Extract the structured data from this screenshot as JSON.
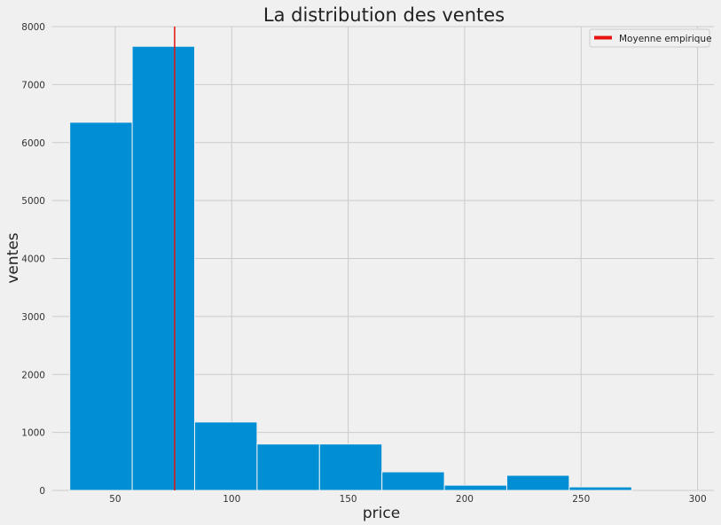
{
  "chart_data": {
    "type": "bar",
    "title": "La distribution des ventes",
    "xlabel": "price",
    "ylabel": "ventes",
    "xlim": [
      23,
      307
    ],
    "ylim": [
      0,
      8000
    ],
    "xticks": [
      50,
      100,
      150,
      200,
      250,
      300
    ],
    "yticks": [
      0,
      1000,
      2000,
      3000,
      4000,
      5000,
      6000,
      7000,
      8000
    ],
    "bin_edges": [
      30.5,
      57.3,
      84.1,
      110.9,
      137.7,
      164.5,
      191.3,
      218.1,
      244.9,
      271.7,
      298.5
    ],
    "values": [
      6350,
      7660,
      1180,
      800,
      800,
      320,
      90,
      260,
      60,
      0
    ],
    "bar_color": "#008fd5",
    "mean_line": {
      "x": 75.5,
      "label": "Moyenne empirique",
      "color": "#e5130f"
    },
    "grid": true,
    "legend_position": "top-right"
  }
}
